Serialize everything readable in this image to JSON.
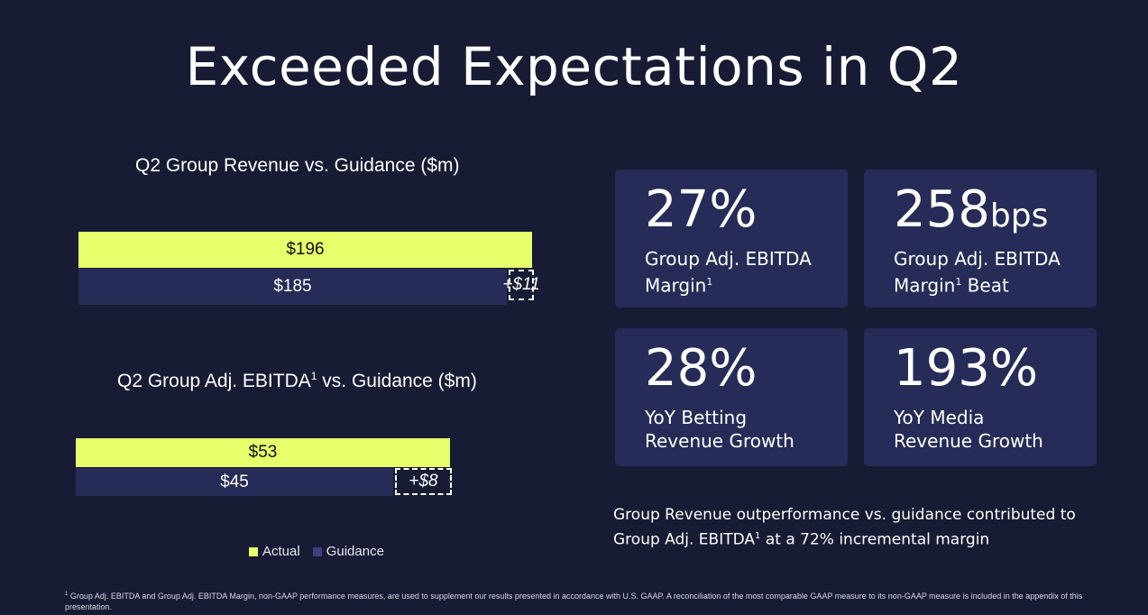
{
  "title": "Exceeded Expectations in Q2",
  "colors": {
    "actual": "#e6ff6b",
    "guidance": "#262c57",
    "background": "#171b33",
    "card": "#262c57"
  },
  "chart_data": [
    {
      "type": "bar",
      "title": "Q2 Group Revenue vs. Guidance ($m)",
      "categories": [
        "Q2 Group Revenue"
      ],
      "series": [
        {
          "name": "Actual",
          "values": [
            196
          ],
          "label": "$196"
        },
        {
          "name": "Guidance",
          "values": [
            185
          ],
          "label": "$185"
        }
      ],
      "delta_label": "+$11",
      "orientation": "horizontal"
    },
    {
      "type": "bar",
      "title_main": "Q2 Group Adj. EBITDA",
      "title_sup": "1",
      "title_rest": " vs. Guidance ($m)",
      "categories": [
        "Q2 Group Adj. EBITDA"
      ],
      "series": [
        {
          "name": "Actual",
          "values": [
            53
          ],
          "label": "$53"
        },
        {
          "name": "Guidance",
          "values": [
            45
          ],
          "label": "$45"
        }
      ],
      "delta_label": "+$8",
      "orientation": "horizontal"
    }
  ],
  "legend": {
    "actual": "Actual",
    "guidance": "Guidance"
  },
  "cards": [
    {
      "value": "27%",
      "unit": "",
      "line1": "Group Adj. EBITDA",
      "line2": "Margin",
      "sup": "1",
      "line2_after": ""
    },
    {
      "value": "258",
      "unit": "bps",
      "line1": "Group Adj. EBITDA",
      "line2": "Margin",
      "sup": "1",
      "line2_after": " Beat"
    },
    {
      "value": "28%",
      "unit": "",
      "line1": "YoY Betting",
      "line2": "Revenue Growth",
      "sup": "",
      "line2_after": ""
    },
    {
      "value": "193%",
      "unit": "",
      "line1": "YoY Media",
      "line2": "Revenue Growth",
      "sup": "",
      "line2_after": ""
    }
  ],
  "note": {
    "line1": "Group Revenue outperformance vs. guidance contributed to",
    "line2_before": "Group Adj. EBITDA",
    "sup": "1",
    "line2_after": " at a 72% incremental margin"
  },
  "footnote": {
    "sup": "1",
    "text": " Group Adj. EBITDA and Group Adj. EBITDA Margin, non-GAAP performance measures, are used to supplement our results presented in accordance with U.S. GAAP. A reconciliation of the most comparable GAAP measure to its non-GAAP measure is included in the appendix of this presentation."
  }
}
